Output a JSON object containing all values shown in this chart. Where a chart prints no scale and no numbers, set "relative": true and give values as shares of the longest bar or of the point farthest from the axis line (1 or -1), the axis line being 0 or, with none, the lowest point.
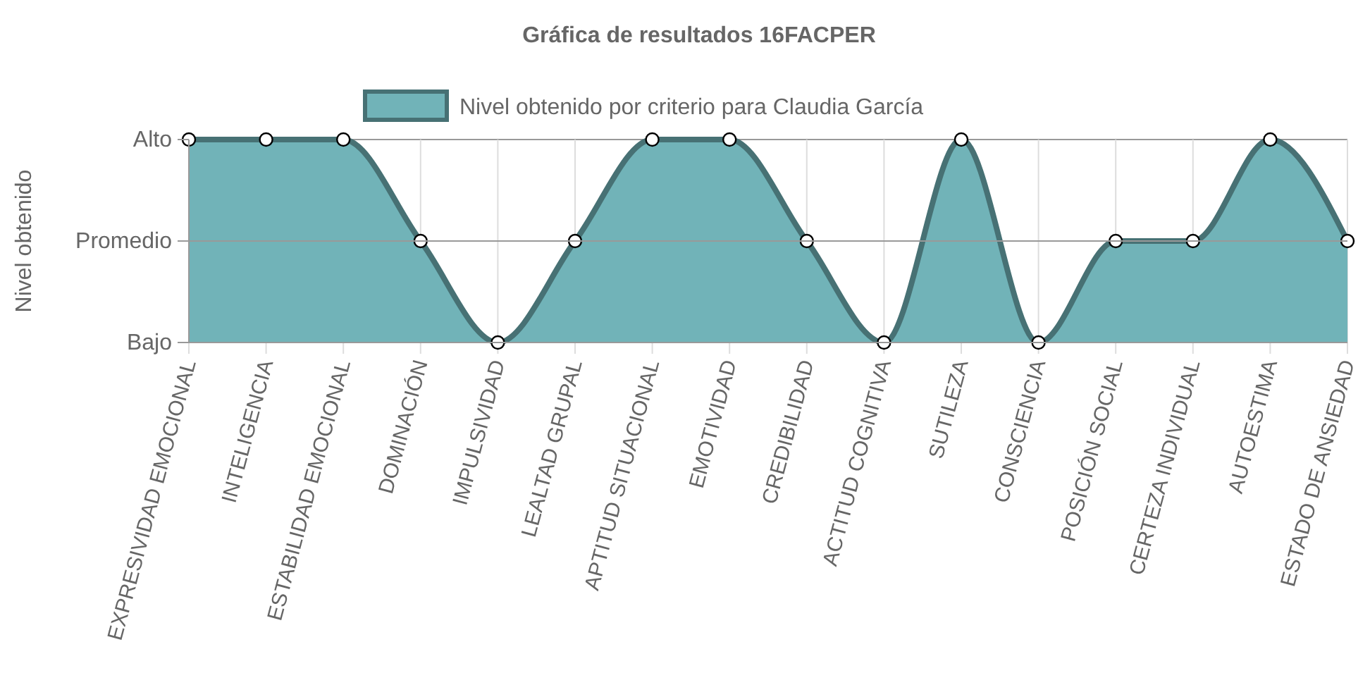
{
  "chart_data": {
    "type": "area",
    "title": "Gráfica de resultados 16FACPER",
    "ylabel": "Nivel obtenido",
    "categories": [
      "EXPRESIVIDAD EMOCIONAL",
      "INTELIGENCIA",
      "ESTABILIDAD EMOCIONAL",
      "DOMINACIÓN",
      "IMPULSIVIDAD",
      "LEALTAD GRUPAL",
      "APTITUD SITUACIONAL",
      "EMOTIVIDAD",
      "CREDIBILIDAD",
      "ACTITUD COGNITIVA",
      "SUTILEZA",
      "CONSCIENCIA",
      "POSICIÓN SOCIAL",
      "CERTEZA INDIVIDUAL",
      "AUTOESTIMA",
      "ESTADO DE ANSIEDAD"
    ],
    "series": [
      {
        "name": "Nivel obtenido por criterio para Claudia García",
        "color": "#71b3b8",
        "values": [
          1,
          1,
          1,
          0.5,
          0,
          0.5,
          1,
          1,
          0.5,
          0,
          1,
          0,
          0.5,
          0.5,
          1,
          0.5
        ]
      }
    ],
    "relative": true,
    "annotations": [
      "Bajo",
      "Alto"
    ],
    "ref_lines": [
      {
        "axis": "y",
        "value": 0.5,
        "label": "Promedio",
        "color": "#999999"
      }
    ],
    "grid": true,
    "legend": "top",
    "marker": "circle",
    "line_style": "solid"
  }
}
